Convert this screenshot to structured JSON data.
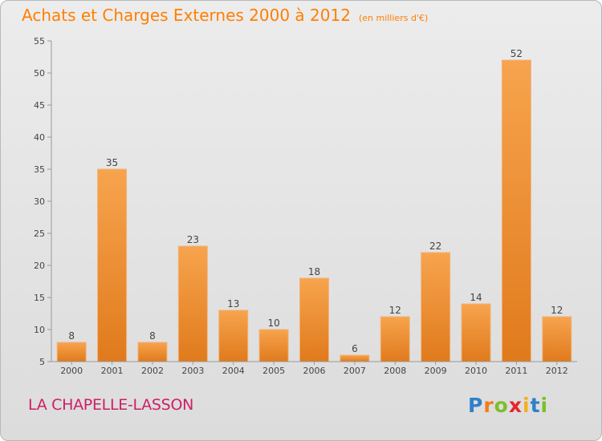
{
  "header": {
    "title": "Achats et Charges Externes 2000 à 2012",
    "unit": "(en milliers d'€)"
  },
  "footer": {
    "commune": "LA CHAPELLE-LASSON",
    "logo_text": "Proxiti"
  },
  "colors": {
    "bar_light": "#f7a44e",
    "bar_dark": "#e07a1c",
    "title": "#ff7f00",
    "commune": "#cc1f66"
  },
  "chart_data": {
    "type": "bar",
    "title": "Achats et Charges Externes 2000 à 2012",
    "subtitle": "(en milliers d'€)",
    "categories": [
      "2000",
      "2001",
      "2002",
      "2003",
      "2004",
      "2005",
      "2006",
      "2007",
      "2008",
      "2009",
      "2010",
      "2011",
      "2012"
    ],
    "values": [
      8,
      35,
      8,
      23,
      13,
      10,
      18,
      6,
      12,
      22,
      14,
      52,
      12
    ],
    "ylim": [
      5,
      55
    ],
    "yticks": [
      5,
      10,
      15,
      20,
      25,
      30,
      35,
      40,
      45,
      50,
      55
    ],
    "grid": false,
    "data_labels": true
  }
}
